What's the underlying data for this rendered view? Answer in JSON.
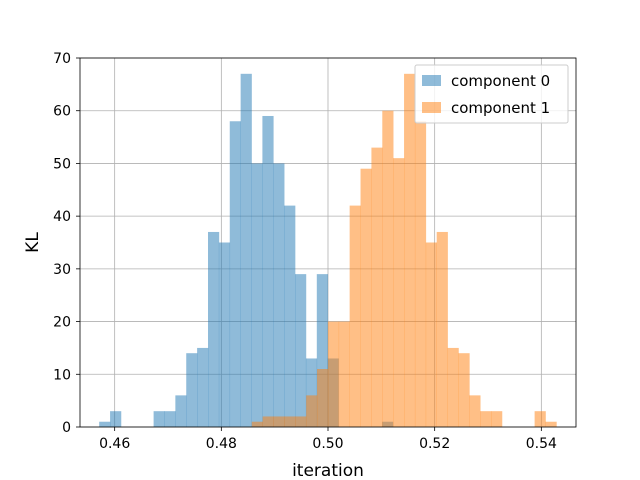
{
  "chart_data": {
    "type": "bar",
    "histogram": true,
    "xlabel": "iteration",
    "ylabel": "KL",
    "xlim": [
      0.4535,
      0.5465
    ],
    "ylim": [
      0,
      70
    ],
    "xticks": [
      0.46,
      0.48,
      0.5,
      0.52,
      0.54
    ],
    "xtick_labels": [
      "0.46",
      "0.48",
      "0.50",
      "0.52",
      "0.54"
    ],
    "yticks": [
      0,
      10,
      20,
      30,
      40,
      50,
      60,
      70
    ],
    "ytick_labels": [
      "0",
      "10",
      "20",
      "30",
      "40",
      "50",
      "60",
      "70"
    ],
    "grid": true,
    "legend_position": "top-right",
    "series": [
      {
        "name": "component 0",
        "color": "#1f77b4",
        "alpha": 0.5,
        "bin_start": 0.4571,
        "bin_width": 0.00204,
        "counts": [
          1,
          3,
          0,
          0,
          0,
          3,
          3,
          6,
          14,
          15,
          37,
          35,
          58,
          67,
          50,
          59,
          50,
          42,
          29,
          13,
          29,
          13,
          0,
          0,
          0,
          0,
          1
        ]
      },
      {
        "name": "component 1",
        "color": "#ff7f0e",
        "alpha": 0.5,
        "bin_start": 0.4857,
        "bin_width": 0.00204,
        "counts": [
          1,
          2,
          2,
          2,
          2,
          6,
          11,
          20,
          20,
          42,
          49,
          53,
          60,
          51,
          67,
          58,
          35,
          37,
          15,
          14,
          6,
          3,
          3,
          0,
          0,
          0,
          3,
          1
        ]
      }
    ]
  }
}
